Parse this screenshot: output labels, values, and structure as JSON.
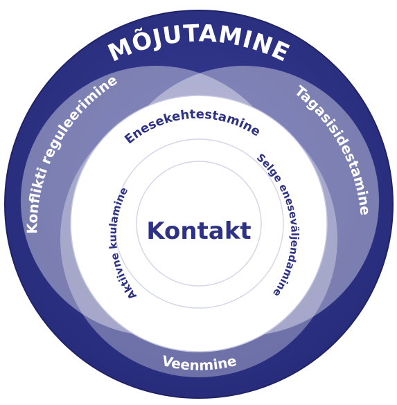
{
  "outer_title": "MÕJUTAMINE",
  "left_petal": "Konflikti reguleerimine",
  "right_petal": "Tagasisidestamine",
  "bottom_petal": "Veenmine",
  "inner_ring": {
    "top": "Enesekehtestamine",
    "right": "Selge eneseväljendamine",
    "left": "Aktiivne kuulamine"
  },
  "center": "Kontakt",
  "colors": {
    "outer": "#2e3285",
    "petal": "#8a8ec0",
    "petal_light": "#b7b9da",
    "ring_text": "#2e3285",
    "white": "#ffffff"
  }
}
